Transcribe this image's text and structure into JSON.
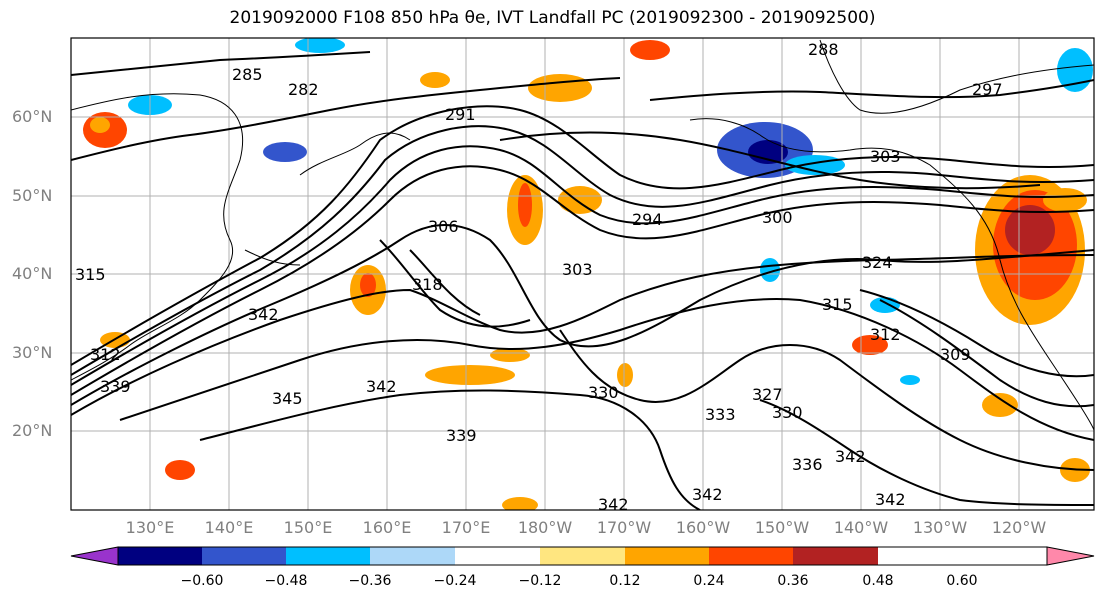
{
  "title": "2019092000 F108 850 hPa θe, IVT Landfall PC (2019092300 - 2019092500)",
  "map": {
    "lat_labels": [
      "60°N",
      "50°N",
      "40°N",
      "30°N",
      "20°N"
    ],
    "lon_labels": [
      "130°E",
      "140°E",
      "150°E",
      "160°E",
      "170°E",
      "180°W",
      "170°W",
      "160°W",
      "150°W",
      "140°W",
      "130°W",
      "120°W"
    ],
    "contour_labels": [
      "285",
      "282",
      "291",
      "288",
      "297",
      "303",
      "306",
      "294",
      "300",
      "303",
      "318",
      "315",
      "312",
      "309",
      "324",
      "342",
      "339",
      "345",
      "342",
      "339",
      "330",
      "327",
      "330",
      "333",
      "336",
      "342",
      "342",
      "342",
      "342",
      "315",
      "312"
    ]
  },
  "colorbar": {
    "ticks": [
      "−0.60",
      "−0.48",
      "−0.36",
      "−0.24",
      "−0.12",
      "0.12",
      "0.24",
      "0.36",
      "0.48",
      "0.60"
    ],
    "colors": [
      "#9933cc",
      "#000080",
      "#3355cc",
      "#00bfff",
      "#add8f8",
      "#ffffff",
      "#ffe680",
      "#ffa500",
      "#ff4500",
      "#b22222",
      "#ff88aa"
    ]
  }
}
